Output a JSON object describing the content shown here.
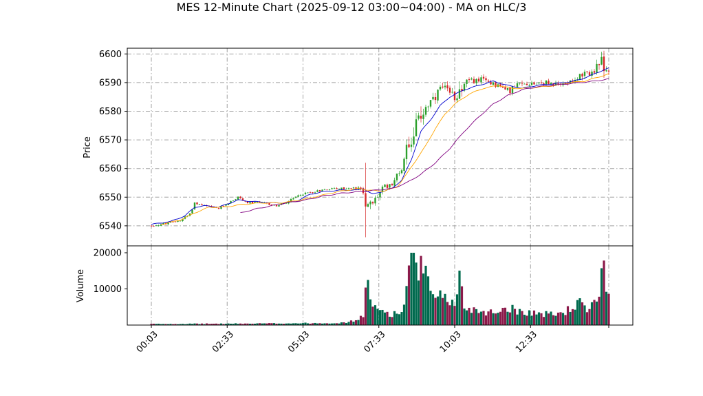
{
  "chart_data": {
    "type": "candlestick",
    "title": "MES 12-Minute Chart (2025-09-12 03:00~04:00) - MA on HLC/3",
    "price_panel": {
      "ylabel": "Price",
      "ylim": [
        6533,
        6602
      ],
      "yticks": [
        6540,
        6550,
        6560,
        6570,
        6580,
        6590,
        6600
      ],
      "up_color": "#2ca02c",
      "down_color": "#d62728"
    },
    "volume_panel": {
      "ylabel": "Volume",
      "ylim": [
        0,
        20000
      ],
      "yticks": [
        10000,
        20000
      ],
      "up_color": "#006a4e",
      "down_color": "#8b1a4a"
    },
    "xlabels": [
      "00:03",
      "02:33",
      "05:03",
      "07:33",
      "10:03",
      "12:33"
    ],
    "grid": true,
    "ma_series": [
      {
        "color": "#0000cd",
        "points": [
          [
            0,
            6540.5
          ],
          [
            8,
            6541.5
          ],
          [
            14,
            6543.5
          ],
          [
            18,
            6546.5
          ],
          [
            22,
            6547
          ],
          [
            28,
            6546.5
          ],
          [
            36,
            6549
          ],
          [
            42,
            6548.5
          ],
          [
            50,
            6548
          ],
          [
            56,
            6548
          ],
          [
            60,
            6548.5
          ],
          [
            66,
            6551
          ],
          [
            72,
            6552
          ],
          [
            80,
            6552.5
          ],
          [
            86,
            6552.5
          ],
          [
            88,
            6553
          ],
          [
            92,
            6551
          ],
          [
            96,
            6552
          ],
          [
            100,
            6553
          ],
          [
            104,
            6556
          ],
          [
            108,
            6563
          ],
          [
            112,
            6573
          ],
          [
            116,
            6577
          ],
          [
            120,
            6582
          ],
          [
            124,
            6585
          ],
          [
            130,
            6587.5
          ],
          [
            136,
            6589
          ],
          [
            142,
            6590.5
          ],
          [
            148,
            6589
          ],
          [
            154,
            6588
          ],
          [
            160,
            6589
          ],
          [
            166,
            6589.5
          ],
          [
            172,
            6590
          ],
          [
            178,
            6591
          ],
          [
            184,
            6593
          ],
          [
            188,
            6594.5
          ],
          [
            190,
            6595
          ]
        ]
      },
      {
        "color": "#ffa500",
        "points": [
          [
            4,
            6540.5
          ],
          [
            12,
            6542
          ],
          [
            18,
            6544.5
          ],
          [
            24,
            6546.5
          ],
          [
            30,
            6546.5
          ],
          [
            38,
            6547.5
          ],
          [
            46,
            6548
          ],
          [
            54,
            6548
          ],
          [
            62,
            6549
          ],
          [
            70,
            6550.5
          ],
          [
            78,
            6552
          ],
          [
            86,
            6553
          ],
          [
            90,
            6552.5
          ],
          [
            96,
            6552
          ],
          [
            102,
            6553.5
          ],
          [
            106,
            6558
          ],
          [
            110,
            6563
          ],
          [
            114,
            6568
          ],
          [
            118,
            6574
          ],
          [
            122,
            6579
          ],
          [
            126,
            6582.5
          ],
          [
            132,
            6586
          ],
          [
            138,
            6588
          ],
          [
            144,
            6589
          ],
          [
            150,
            6588
          ],
          [
            156,
            6588
          ],
          [
            162,
            6588.5
          ],
          [
            168,
            6589
          ],
          [
            174,
            6590
          ],
          [
            180,
            6590.5
          ],
          [
            186,
            6592
          ],
          [
            190,
            6593
          ]
        ]
      },
      {
        "color": "#800080",
        "points": [
          [
            37,
            6544.5
          ],
          [
            44,
            6546
          ],
          [
            50,
            6547
          ],
          [
            56,
            6548
          ],
          [
            64,
            6549
          ],
          [
            72,
            6550.5
          ],
          [
            80,
            6551.5
          ],
          [
            88,
            6552
          ],
          [
            94,
            6552.5
          ],
          [
            100,
            6553
          ],
          [
            106,
            6555
          ],
          [
            112,
            6558
          ],
          [
            118,
            6562
          ],
          [
            124,
            6567
          ],
          [
            130,
            6573
          ],
          [
            136,
            6578
          ],
          [
            142,
            6582.5
          ],
          [
            148,
            6585.5
          ],
          [
            154,
            6587.5
          ],
          [
            160,
            6588.5
          ],
          [
            166,
            6589
          ],
          [
            172,
            6589.5
          ],
          [
            178,
            6590
          ],
          [
            184,
            6590.5
          ],
          [
            190,
            6591.3
          ]
        ]
      }
    ],
    "key_points": [
      [
        0,
        6540
      ],
      [
        8,
        6541
      ],
      [
        12,
        6542
      ],
      [
        16,
        6544
      ],
      [
        18,
        6548
      ],
      [
        22,
        6547
      ],
      [
        28,
        6546
      ],
      [
        32,
        6548
      ],
      [
        36,
        6550
      ],
      [
        40,
        6548
      ],
      [
        46,
        6548
      ],
      [
        52,
        6547
      ],
      [
        56,
        6548
      ],
      [
        62,
        6551
      ],
      [
        68,
        6552
      ],
      [
        74,
        6553
      ],
      [
        80,
        6553
      ],
      [
        86,
        6553
      ],
      [
        88,
        6552
      ],
      [
        90,
        6546
      ],
      [
        92,
        6548
      ],
      [
        96,
        6553
      ],
      [
        100,
        6555
      ],
      [
        104,
        6560
      ],
      [
        106,
        6568
      ],
      [
        110,
        6575
      ],
      [
        114,
        6582
      ],
      [
        118,
        6584
      ],
      [
        120,
        6588
      ],
      [
        126,
        6585
      ],
      [
        130,
        6590
      ],
      [
        136,
        6591
      ],
      [
        142,
        6590
      ],
      [
        148,
        6587
      ],
      [
        152,
        6589
      ],
      [
        158,
        6590
      ],
      [
        164,
        6590
      ],
      [
        170,
        6589
      ],
      [
        174,
        6591
      ],
      [
        178,
        6592
      ],
      [
        184,
        6594
      ],
      [
        188,
        6597
      ],
      [
        190,
        6592
      ]
    ],
    "volume_profile": [
      [
        0,
        300
      ],
      [
        40,
        400
      ],
      [
        80,
        600
      ],
      [
        86,
        1500
      ],
      [
        88,
        2500
      ],
      [
        89,
        14000
      ],
      [
        92,
        4500
      ],
      [
        96,
        4000
      ],
      [
        100,
        3000
      ],
      [
        104,
        3500
      ],
      [
        106,
        10000
      ],
      [
        108,
        20000
      ],
      [
        110,
        14000
      ],
      [
        112,
        17000
      ],
      [
        114,
        13000
      ],
      [
        118,
        6000
      ],
      [
        122,
        9000
      ],
      [
        126,
        5000
      ],
      [
        128,
        13500
      ],
      [
        130,
        5000
      ],
      [
        136,
        4000
      ],
      [
        142,
        3500
      ],
      [
        148,
        5000
      ],
      [
        152,
        4000
      ],
      [
        158,
        3500
      ],
      [
        164,
        3000
      ],
      [
        170,
        3200
      ],
      [
        174,
        4500
      ],
      [
        178,
        6000
      ],
      [
        182,
        3500
      ],
      [
        186,
        9500
      ],
      [
        188,
        17000
      ],
      [
        190,
        8500
      ]
    ]
  }
}
